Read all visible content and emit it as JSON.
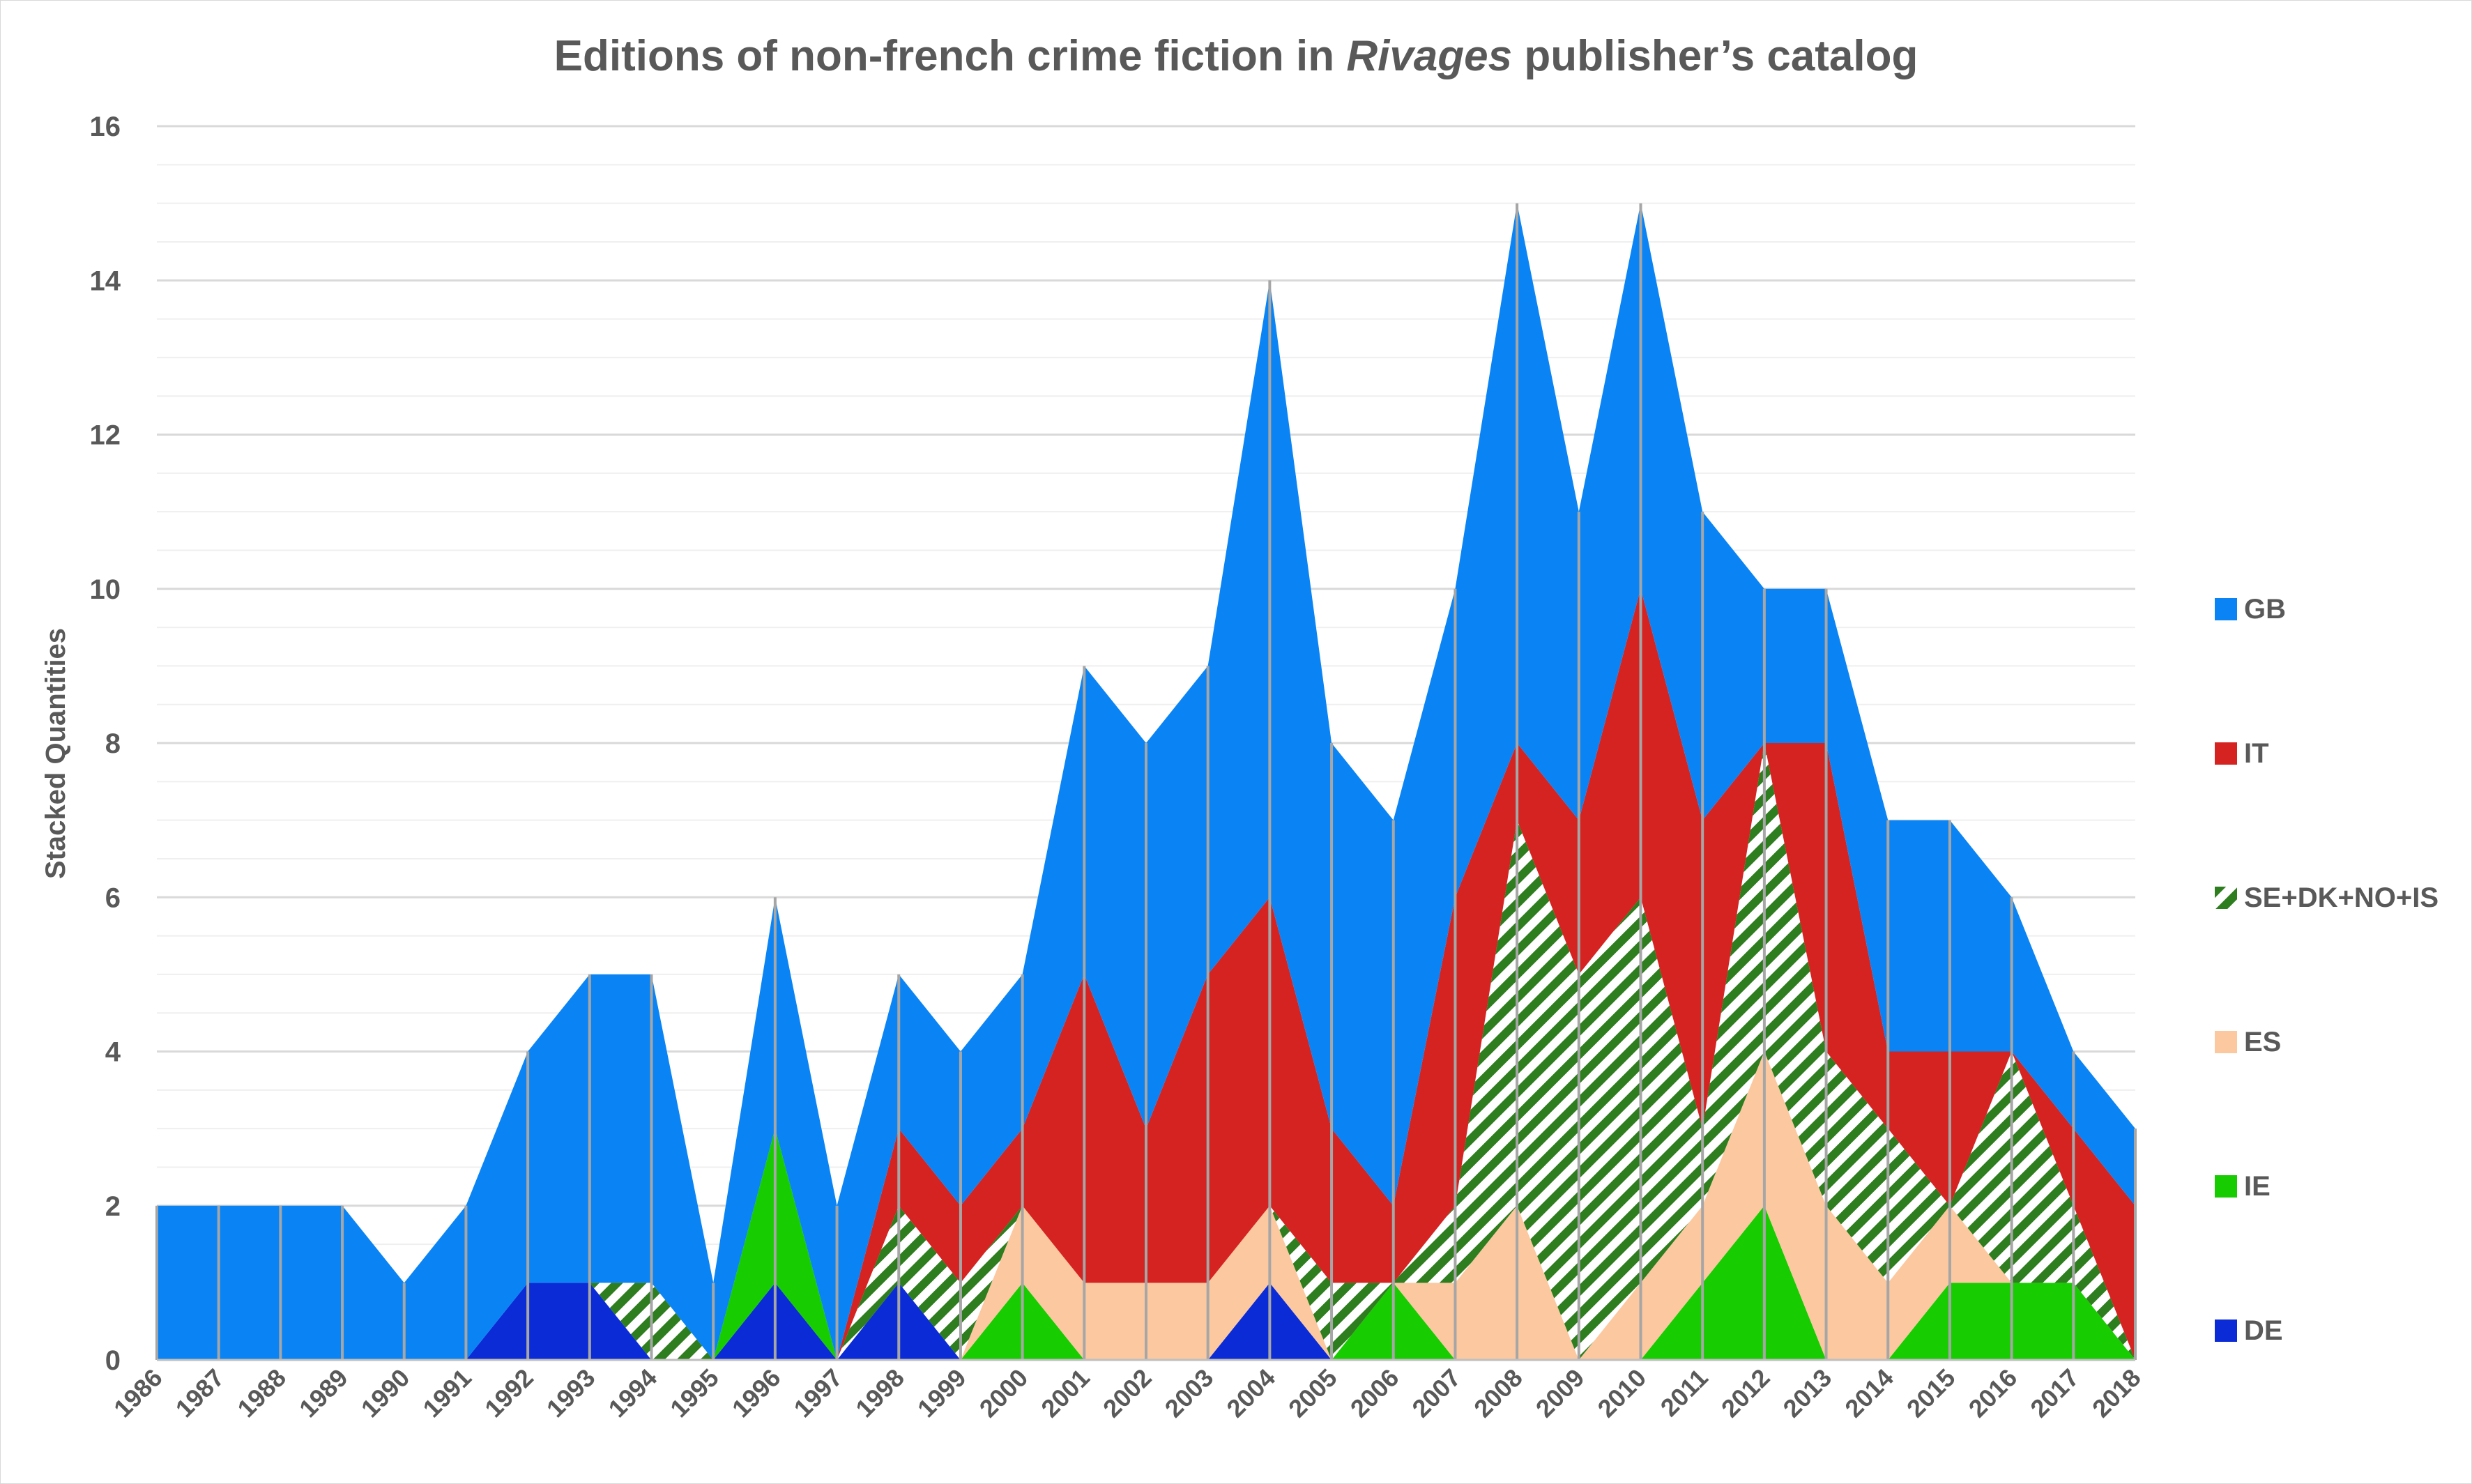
{
  "chart_data": {
    "type": "area",
    "stacked": true,
    "title": {
      "prefix": "Editions of non-french crime fiction in ",
      "emphasis": "Rivages",
      "suffix": " publisher’s catalog"
    },
    "xlabel": "",
    "ylabel": "Stacked Quantities",
    "ylim": [
      0,
      16
    ],
    "yticks": [
      0,
      2,
      4,
      6,
      8,
      10,
      12,
      14,
      16
    ],
    "grid": true,
    "legend_position": "right",
    "categories": [
      "1986",
      "1987",
      "1988",
      "1989",
      "1990",
      "1991",
      "1992",
      "1993",
      "1994",
      "1995",
      "1996",
      "1997",
      "1998",
      "1999",
      "2000",
      "2001",
      "2002",
      "2003",
      "2004",
      "2005",
      "2006",
      "2007",
      "2008",
      "2009",
      "2010",
      "2011",
      "2012",
      "2013",
      "2014",
      "2015",
      "2016",
      "2017",
      "2018"
    ],
    "series": [
      {
        "name": "DE",
        "color": "#0B2BD6",
        "pattern": false,
        "values": [
          0,
          0,
          0,
          0,
          0,
          0,
          1,
          1,
          0,
          0,
          1,
          0,
          1,
          0,
          0,
          0,
          0,
          0,
          1,
          0,
          0,
          0,
          0,
          0,
          0,
          0,
          0,
          0,
          0,
          0,
          0,
          0,
          0
        ]
      },
      {
        "name": "IE",
        "color": "#17CC00",
        "pattern": false,
        "values": [
          0,
          0,
          0,
          0,
          0,
          0,
          0,
          0,
          0,
          0,
          2,
          0,
          0,
          0,
          1,
          0,
          0,
          0,
          0,
          0,
          1,
          0,
          0,
          0,
          0,
          1,
          2,
          0,
          0,
          1,
          1,
          1,
          0
        ]
      },
      {
        "name": "ES",
        "color": "#FCC8A0",
        "pattern": false,
        "values": [
          0,
          0,
          0,
          0,
          0,
          0,
          0,
          0,
          0,
          0,
          0,
          0,
          0,
          0,
          1,
          1,
          1,
          1,
          1,
          0,
          0,
          1,
          2,
          0,
          1,
          1,
          2,
          2,
          1,
          1,
          0,
          0,
          0
        ]
      },
      {
        "name": "SE+DK+NO+IS",
        "color": "#2E7D1E",
        "pattern": true,
        "values": [
          0,
          0,
          0,
          0,
          0,
          0,
          0,
          0,
          1,
          0,
          0,
          0,
          1,
          1,
          0,
          0,
          0,
          0,
          0,
          1,
          0,
          1,
          5,
          5,
          5,
          1,
          4,
          2,
          2,
          0,
          3,
          1,
          0
        ]
      },
      {
        "name": "IT",
        "color": "#D42321",
        "pattern": false,
        "values": [
          0,
          0,
          0,
          0,
          0,
          0,
          0,
          0,
          0,
          0,
          0,
          0,
          1,
          1,
          1,
          4,
          2,
          4,
          4,
          2,
          1,
          4,
          1,
          2,
          4,
          4,
          0,
          4,
          1,
          2,
          0,
          1,
          2
        ]
      },
      {
        "name": "GB",
        "color": "#0A84F4",
        "pattern": false,
        "values": [
          2,
          2,
          2,
          2,
          1,
          2,
          3,
          4,
          4,
          1,
          3,
          2,
          2,
          2,
          2,
          4,
          5,
          4,
          8,
          5,
          5,
          4,
          7,
          4,
          5,
          4,
          2,
          2,
          3,
          3,
          2,
          1,
          1
        ]
      }
    ]
  }
}
